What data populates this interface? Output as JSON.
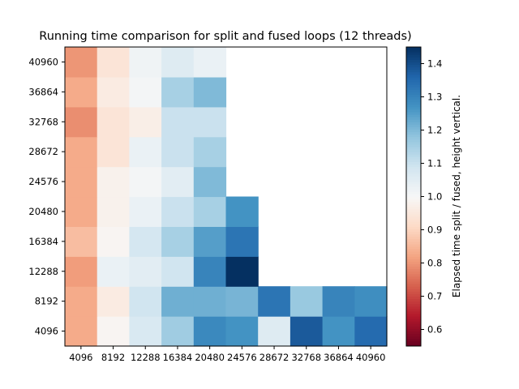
{
  "chart_data": {
    "type": "heatmap",
    "title": "Running time comparison for split and fused loops (12 threads)",
    "xlabel": "",
    "ylabel": "",
    "x_categories": [
      "4096",
      "8192",
      "12288",
      "16384",
      "20480",
      "24576",
      "28672",
      "32768",
      "36864",
      "40960"
    ],
    "y_categories": [
      "4096",
      "8192",
      "12288",
      "16384",
      "20480",
      "24576",
      "28672",
      "32768",
      "36864",
      "40960"
    ],
    "values": [
      [
        0.83,
        0.99,
        1.07,
        1.16,
        1.29,
        1.27,
        1.06,
        1.38,
        1.27,
        1.35
      ],
      [
        0.83,
        0.96,
        1.09,
        1.22,
        1.22,
        1.21,
        1.33,
        1.17,
        1.3,
        1.28
      ],
      [
        0.81,
        1.03,
        1.05,
        1.09,
        1.3,
        1.45,
        null,
        null,
        null,
        null
      ],
      [
        0.86,
        0.99,
        1.08,
        1.15,
        1.25,
        1.33,
        null,
        null,
        null,
        null
      ],
      [
        0.83,
        0.98,
        1.03,
        1.1,
        1.15,
        1.27,
        null,
        null,
        null,
        null
      ],
      [
        0.83,
        0.98,
        1.01,
        1.05,
        1.2,
        null,
        null,
        null,
        null,
        null
      ],
      [
        0.83,
        0.94,
        1.03,
        1.1,
        1.15,
        null,
        null,
        null,
        null,
        null
      ],
      [
        0.79,
        0.94,
        0.97,
        1.1,
        1.1,
        null,
        null,
        null,
        null,
        null
      ],
      [
        0.83,
        0.96,
        1.01,
        1.15,
        1.2,
        null,
        null,
        null,
        null,
        null
      ],
      [
        0.8,
        0.94,
        1.02,
        1.06,
        1.03,
        null,
        null,
        null,
        null,
        null
      ]
    ],
    "colormap": "RdBu",
    "vmin": 0.55,
    "vmax": 1.45,
    "colorbar": {
      "label": "Elapsed time split / fused, height vertical.",
      "ticks": [
        0.6,
        0.7,
        0.8,
        0.9,
        1.0,
        1.1,
        1.2,
        1.3,
        1.4
      ]
    }
  }
}
